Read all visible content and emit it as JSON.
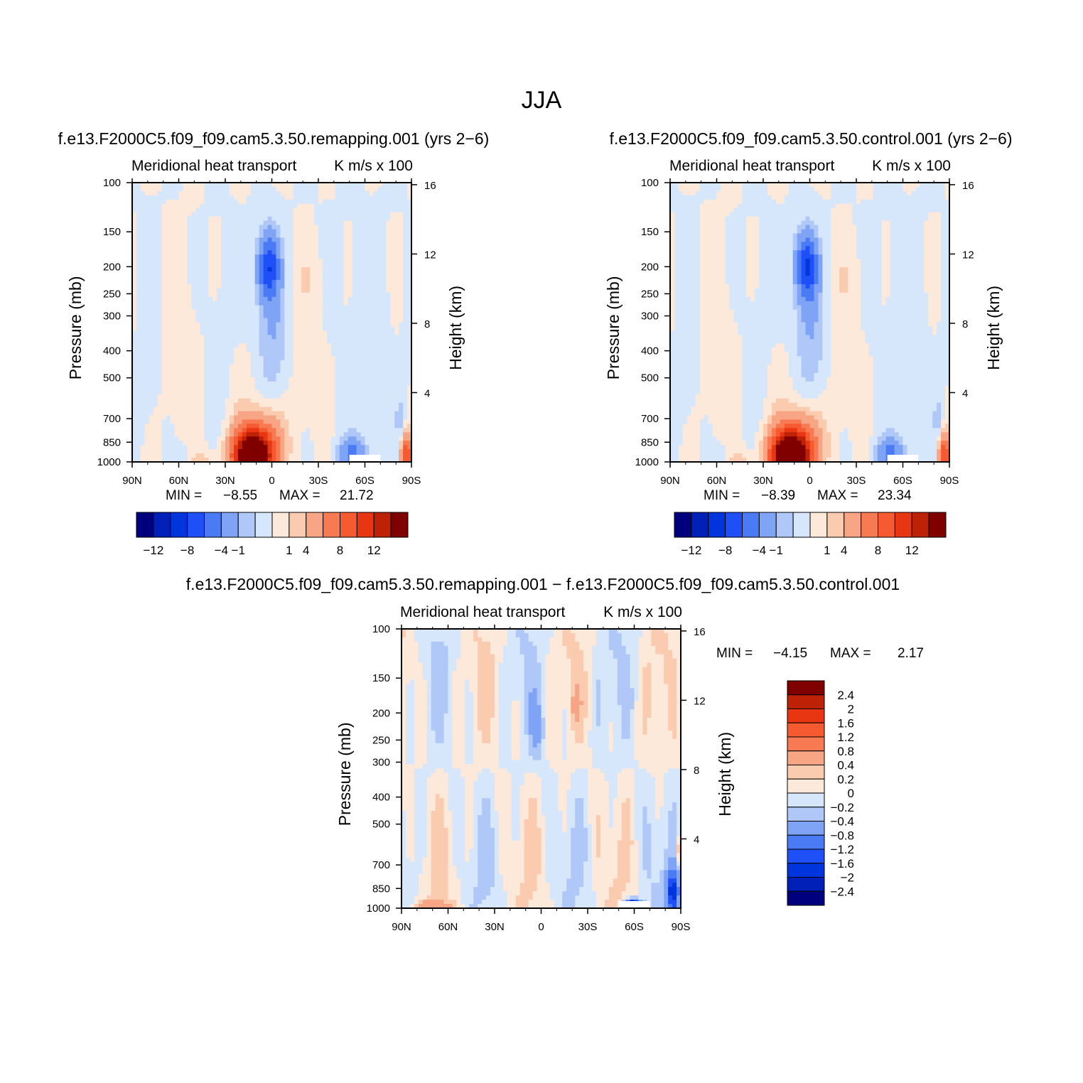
{
  "figure_title": "JJA",
  "colors": {
    "full_palette": [
      "#00007f",
      "#0020b8",
      "#0034dd",
      "#1f4ff7",
      "#4a7bf5",
      "#7fa4f5",
      "#afc8f7",
      "#d6e7fb",
      "#fde9da",
      "#fbcbb0",
      "#f7a585",
      "#f87a53",
      "#f55a30",
      "#e83512",
      "#bd2106",
      "#800000"
    ],
    "diff_palette": [
      "#00007f",
      "#0020b8",
      "#0034dd",
      "#1f4ff7",
      "#4a7bf5",
      "#7fa4f5",
      "#afc8f7",
      "#d6e7fb",
      "#fde9da",
      "#fbcbb0",
      "#f7a585",
      "#f87a53",
      "#f55a30",
      "#e83512",
      "#bd2106",
      "#800000"
    ]
  },
  "chart_data": [
    {
      "type": "heatmap",
      "panel": "remapping",
      "case_title": "f.e13.F2000C5.f09_f09.cam5.3.50.remapping.001 (yrs 2−6)",
      "left_title": "Meridional heat transport",
      "right_title": "K m/s x 100",
      "xlabel": "",
      "ylabel": "Pressure (mb)",
      "ylabel_right": "Height (km)",
      "x_ticks": [
        "90N",
        "60N",
        "30N",
        "0",
        "30S",
        "60S",
        "90S"
      ],
      "y_ticks": [
        "100",
        "150",
        "200",
        "250",
        "300",
        "400",
        "500",
        "700",
        "850",
        "1000"
      ],
      "y_right_ticks": [
        "16",
        "12",
        "8",
        "4"
      ],
      "min_label": "MIN =",
      "min_value": "−8.55",
      "max_label": "MAX =",
      "max_value": "21.72",
      "min": -8.55,
      "max": 21.72,
      "colorbar_labels": [
        "−12",
        "−8",
        "−4",
        "−1",
        "1",
        "4",
        "8",
        "12"
      ],
      "features": [
        {
          "lat": 2,
          "p": 200,
          "value": -7.5
        },
        {
          "lat": 12,
          "p": 950,
          "value": 17
        }
      ]
    },
    {
      "type": "heatmap",
      "panel": "control",
      "case_title": "f.e13.F2000C5.f09_f09.cam5.3.50.control.001 (yrs 2−6)",
      "left_title": "Meridional heat transport",
      "right_title": "K m/s x 100",
      "xlabel": "",
      "ylabel": "Pressure (mb)",
      "ylabel_right": "Height (km)",
      "x_ticks": [
        "90N",
        "60N",
        "30N",
        "0",
        "30S",
        "60S",
        "90S"
      ],
      "y_ticks": [
        "100",
        "150",
        "200",
        "250",
        "300",
        "400",
        "500",
        "700",
        "850",
        "1000"
      ],
      "y_right_ticks": [
        "16",
        "12",
        "8",
        "4"
      ],
      "min_label": "MIN =",
      "min_value": "−8.39",
      "max_label": "MAX =",
      "max_value": "23.34",
      "min": -8.39,
      "max": 23.34,
      "colorbar_labels": [
        "−12",
        "−8",
        "−4",
        "−1",
        "1",
        "4",
        "8",
        "12"
      ],
      "features": [
        {
          "lat": 2,
          "p": 200,
          "value": -7.4
        },
        {
          "lat": 12,
          "p": 950,
          "value": 18
        }
      ]
    },
    {
      "type": "heatmap",
      "panel": "difference",
      "case_title": "f.e13.F2000C5.f09_f09.cam5.3.50.remapping.001 − f.e13.F2000C5.f09_f09.cam5.3.50.control.001",
      "left_title": "Meridional heat transport",
      "right_title": "K m/s x 100",
      "xlabel": "",
      "ylabel": "Pressure (mb)",
      "ylabel_right": "Height (km)",
      "x_ticks": [
        "90N",
        "60N",
        "30N",
        "0",
        "30S",
        "60S",
        "90S"
      ],
      "y_ticks": [
        "100",
        "150",
        "200",
        "250",
        "300",
        "400",
        "500",
        "700",
        "850",
        "1000"
      ],
      "y_right_ticks": [
        "16",
        "12",
        "8",
        "4"
      ],
      "min_label": "MIN =",
      "min_value": "−4.15",
      "max_label": "MAX =",
      "max_value": "2.17",
      "min": -4.15,
      "max": 2.17,
      "colorbar_labels": [
        "2.4",
        "2",
        "1.6",
        "1.2",
        "0.8",
        "0.4",
        "0.2",
        "0",
        "−0.2",
        "−0.4",
        "−0.8",
        "−1.2",
        "−1.6",
        "−2",
        "−2.4"
      ]
    }
  ]
}
